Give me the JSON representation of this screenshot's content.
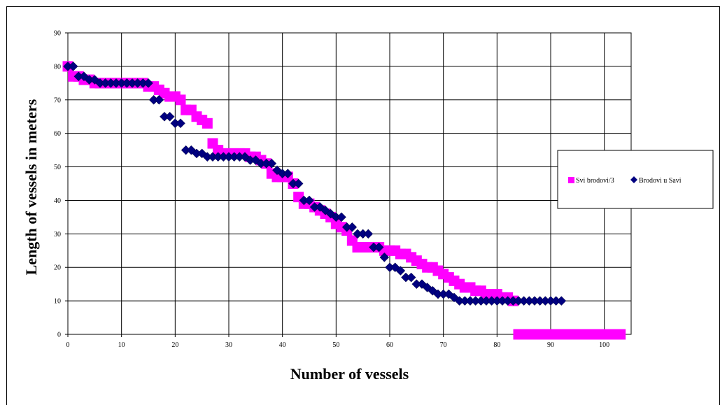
{
  "chart_data": {
    "type": "scatter",
    "xlabel": "Number of vessels",
    "ylabel": "Length of vessels in meters",
    "xlim": [
      0,
      105
    ],
    "ylim": [
      0,
      90
    ],
    "x_ticks": [
      "0",
      "10",
      "20",
      "30",
      "40",
      "50",
      "60",
      "70",
      "80",
      "90",
      "100"
    ],
    "y_ticks": [
      "0",
      "10",
      "20",
      "30",
      "40",
      "50",
      "60",
      "70",
      "80",
      "90"
    ],
    "grid": true,
    "legend_position": "right",
    "series": [
      {
        "name": "Svi brodovi/3",
        "marker": "square",
        "color": "#FF00FF",
        "x": [
          0,
          1,
          2,
          3,
          4,
          5,
          6,
          7,
          8,
          9,
          10,
          11,
          12,
          13,
          14,
          15,
          16,
          17,
          18,
          19,
          20,
          21,
          22,
          23,
          24,
          25,
          26,
          27,
          28,
          29,
          30,
          31,
          32,
          33,
          34,
          35,
          36,
          37,
          38,
          39,
          40,
          41,
          42,
          43,
          44,
          45,
          46,
          47,
          48,
          49,
          50,
          51,
          52,
          53,
          54,
          55,
          56,
          57,
          58,
          59,
          60,
          61,
          62,
          63,
          64,
          65,
          66,
          67,
          68,
          69,
          70,
          71,
          72,
          73,
          74,
          75,
          76,
          77,
          78,
          79,
          80,
          81,
          82,
          83,
          84,
          85,
          86,
          87,
          88,
          89,
          90,
          91,
          92,
          93,
          94,
          95,
          96,
          97,
          98,
          99,
          100,
          101,
          102,
          103
        ],
        "y": [
          80,
          77,
          77,
          76,
          76,
          75,
          75,
          75,
          75,
          75,
          75,
          75,
          75,
          75,
          75,
          74,
          74,
          73,
          72,
          71,
          71,
          70,
          67,
          67,
          65,
          64,
          63,
          57,
          55,
          54,
          54,
          54,
          54,
          54,
          53,
          53,
          52,
          51,
          48,
          47,
          47,
          47,
          45,
          41,
          39,
          39,
          38,
          37,
          36,
          35,
          33,
          32,
          31,
          28,
          26,
          26,
          26,
          26,
          26,
          25,
          25,
          25,
          24,
          24,
          23,
          22,
          21,
          20,
          20,
          19,
          18,
          17,
          16,
          15,
          14,
          14,
          13,
          13,
          12,
          12,
          12,
          11,
          11,
          10,
          0,
          0,
          0,
          0,
          0,
          0,
          0,
          0,
          0,
          0,
          0,
          0,
          0,
          0,
          0,
          0,
          0,
          0,
          0,
          0
        ]
      },
      {
        "name": "Brodovi u Savi",
        "marker": "diamond",
        "color": "#000080",
        "x": [
          0,
          1,
          2,
          3,
          4,
          5,
          6,
          7,
          8,
          9,
          10,
          11,
          12,
          13,
          14,
          15,
          16,
          17,
          18,
          19,
          20,
          21,
          22,
          23,
          24,
          25,
          26,
          27,
          28,
          29,
          30,
          31,
          32,
          33,
          34,
          35,
          36,
          37,
          38,
          39,
          40,
          41,
          42,
          43,
          44,
          45,
          46,
          47,
          48,
          49,
          50,
          51,
          52,
          53,
          54,
          55,
          56,
          57,
          58,
          59,
          60,
          61,
          62,
          63,
          64,
          65,
          66,
          67,
          68,
          69,
          70,
          71,
          72,
          73,
          74,
          75,
          76,
          77,
          78,
          79,
          80,
          81,
          82,
          83,
          84,
          85,
          86,
          87,
          88,
          89,
          90,
          91,
          92
        ],
        "y": [
          80,
          80,
          77,
          77,
          76,
          76,
          75,
          75,
          75,
          75,
          75,
          75,
          75,
          75,
          75,
          75,
          70,
          70,
          65,
          65,
          63,
          63,
          55,
          55,
          54,
          54,
          53,
          53,
          53,
          53,
          53,
          53,
          53,
          53,
          52,
          52,
          51,
          51,
          51,
          49,
          48,
          48,
          45,
          45,
          40,
          40,
          38,
          38,
          37,
          36,
          35,
          35,
          32,
          32,
          30,
          30,
          30,
          26,
          26,
          23,
          20,
          20,
          19,
          17,
          17,
          15,
          15,
          14,
          13,
          12,
          12,
          12,
          11,
          10,
          10,
          10,
          10,
          10,
          10,
          10,
          10,
          10,
          10,
          10,
          10,
          10,
          10,
          10,
          10,
          10,
          10,
          10,
          10
        ]
      }
    ]
  }
}
